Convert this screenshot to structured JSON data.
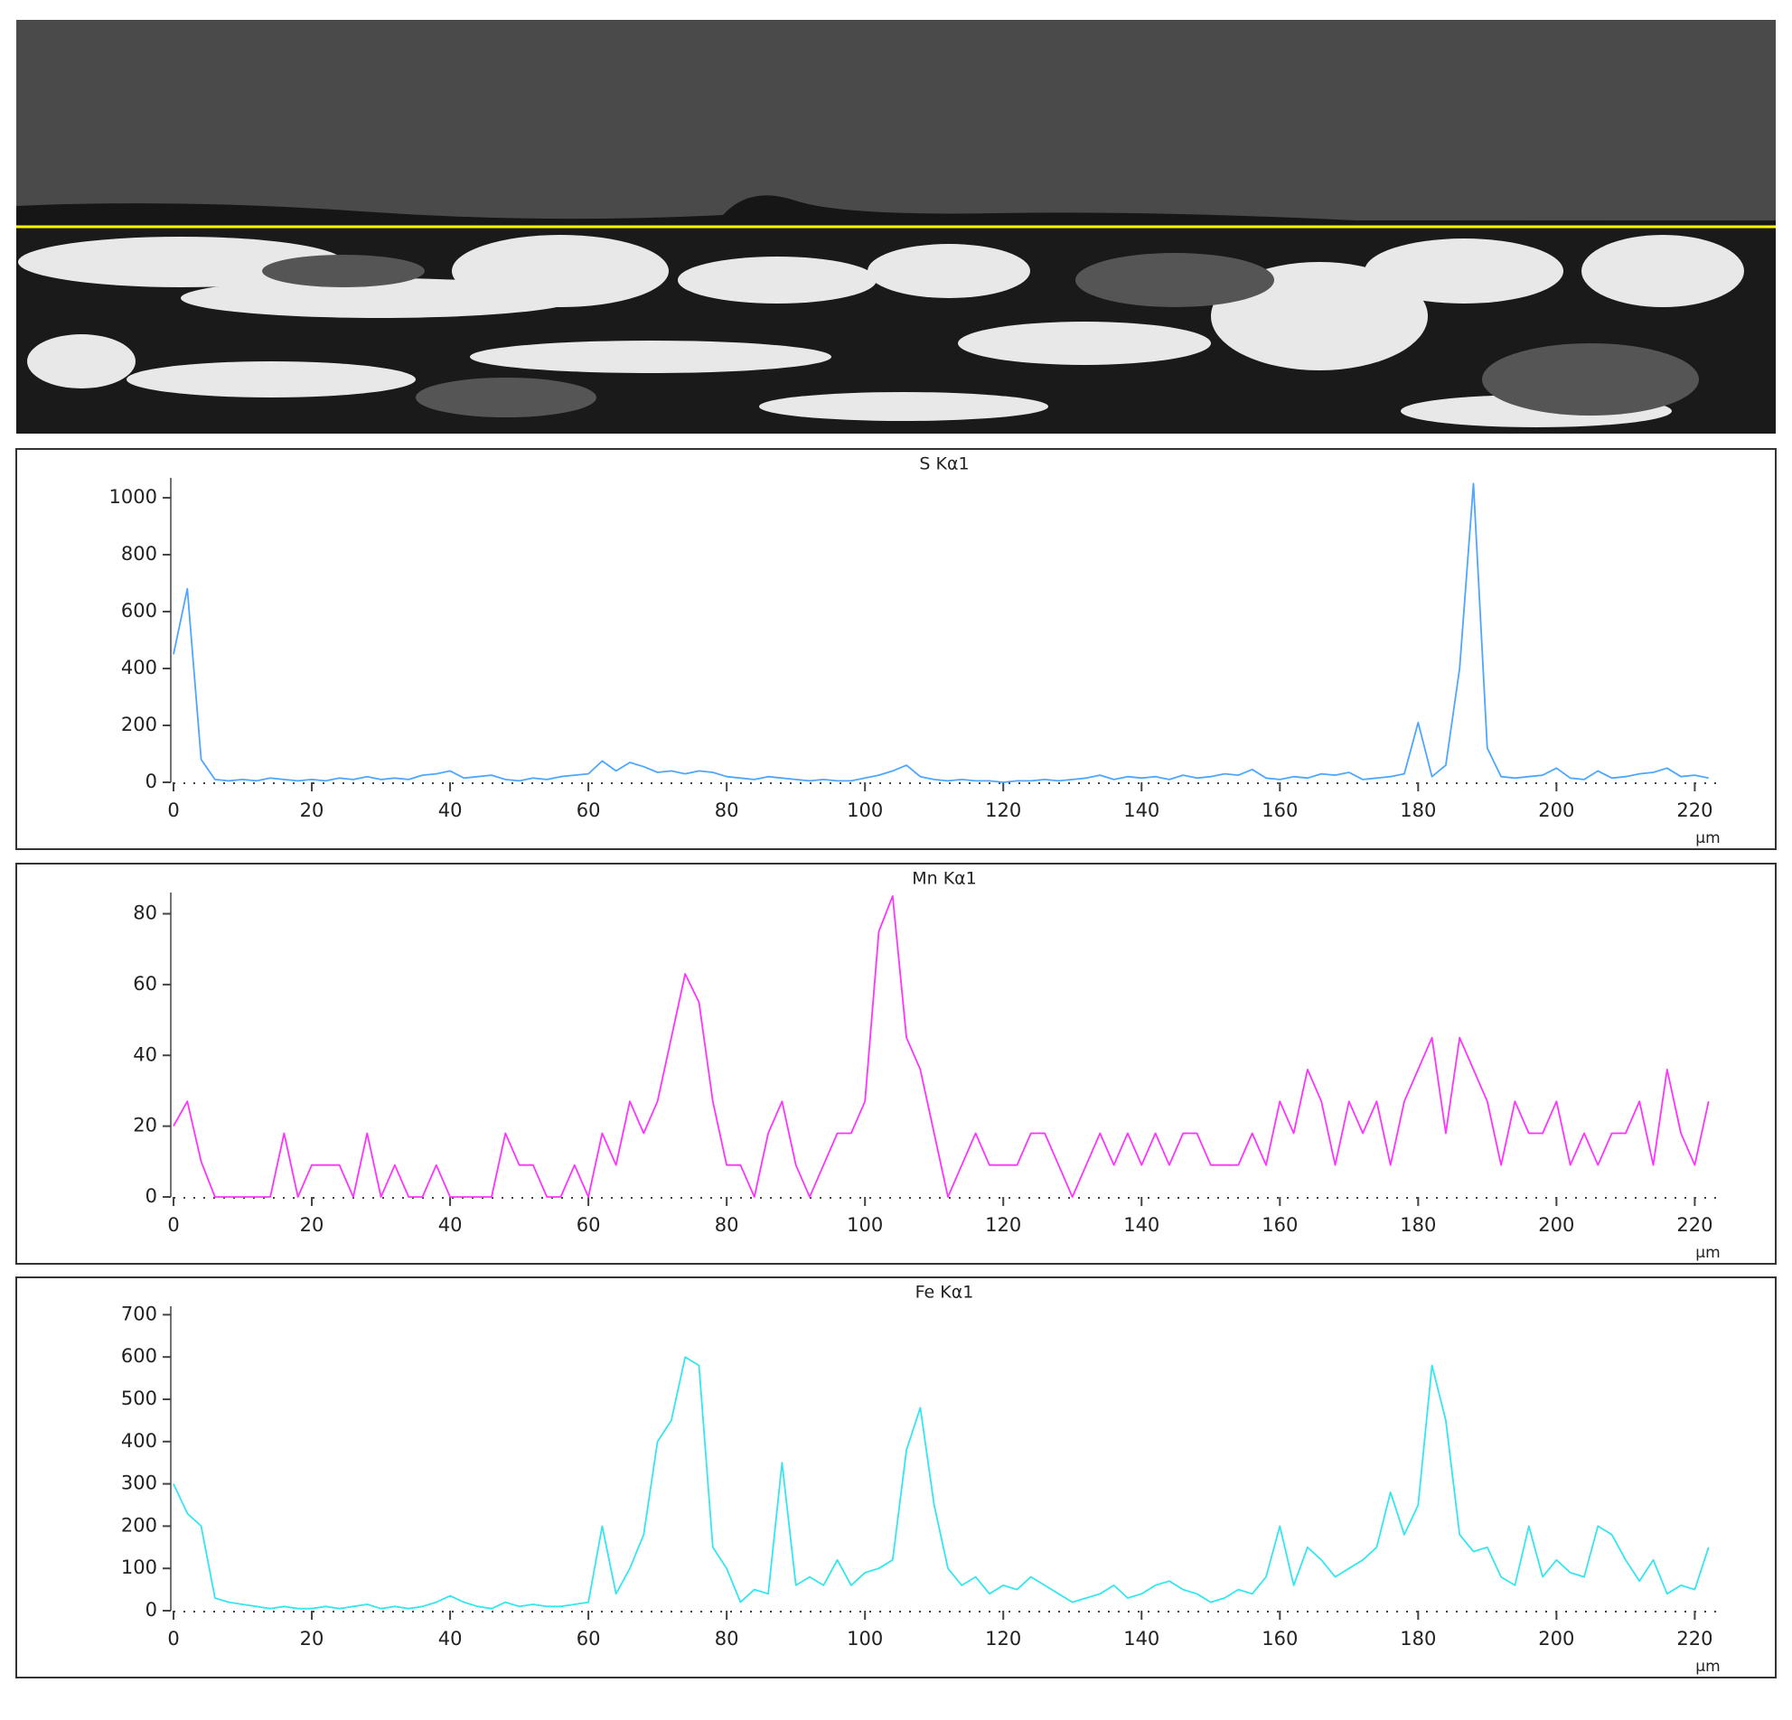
{
  "chart_data": [
    {
      "type": "line",
      "title": "S Kα1",
      "x_label": "μm",
      "color": "#4da6ff",
      "x": [
        0,
        2,
        4,
        6,
        8,
        10,
        12,
        14,
        16,
        18,
        20,
        22,
        24,
        26,
        28,
        30,
        32,
        34,
        36,
        38,
        40,
        42,
        44,
        46,
        48,
        50,
        52,
        54,
        56,
        58,
        60,
        62,
        64,
        66,
        68,
        70,
        72,
        74,
        76,
        78,
        80,
        82,
        84,
        86,
        88,
        90,
        92,
        94,
        96,
        98,
        100,
        102,
        104,
        106,
        108,
        110,
        112,
        114,
        116,
        118,
        120,
        122,
        124,
        126,
        128,
        130,
        132,
        134,
        136,
        138,
        140,
        142,
        144,
        146,
        148,
        150,
        152,
        154,
        156,
        158,
        160,
        162,
        164,
        166,
        168,
        170,
        172,
        174,
        176,
        178,
        180,
        182,
        184,
        186,
        188,
        190,
        192,
        194,
        196,
        198,
        200,
        202,
        204,
        206,
        208,
        210,
        212,
        214,
        216,
        218,
        220,
        222
      ],
      "values": [
        450,
        680,
        80,
        10,
        5,
        10,
        5,
        15,
        10,
        5,
        10,
        5,
        15,
        10,
        20,
        10,
        15,
        10,
        25,
        30,
        40,
        15,
        20,
        25,
        10,
        5,
        15,
        10,
        20,
        25,
        30,
        75,
        40,
        70,
        55,
        35,
        40,
        30,
        40,
        35,
        20,
        15,
        10,
        20,
        15,
        10,
        5,
        10,
        5,
        5,
        15,
        25,
        40,
        60,
        20,
        10,
        5,
        10,
        5,
        5,
        0,
        5,
        5,
        10,
        5,
        10,
        15,
        25,
        10,
        20,
        15,
        20,
        10,
        25,
        15,
        20,
        30,
        25,
        45,
        15,
        10,
        20,
        15,
        30,
        25,
        35,
        10,
        15,
        20,
        30,
        210,
        20,
        60,
        400,
        1050,
        120,
        20,
        15,
        20,
        25,
        50,
        15,
        10,
        40,
        15,
        20,
        30,
        35,
        50,
        20,
        25,
        15
      ],
      "xlim": [
        0,
        224
      ],
      "xticks": [
        0,
        20,
        40,
        60,
        80,
        100,
        120,
        140,
        160,
        180,
        200,
        220
      ],
      "ylim": [
        0,
        1070
      ],
      "yticks": [
        0,
        200,
        400,
        600,
        800,
        1000
      ]
    },
    {
      "type": "line",
      "title": "Mn Kα1",
      "x_label": "μm",
      "color": "#ff33ff",
      "x": [
        0,
        2,
        4,
        6,
        8,
        10,
        12,
        14,
        16,
        18,
        20,
        22,
        24,
        26,
        28,
        30,
        32,
        34,
        36,
        38,
        40,
        42,
        44,
        46,
        48,
        50,
        52,
        54,
        56,
        58,
        60,
        62,
        64,
        66,
        68,
        70,
        72,
        74,
        76,
        78,
        80,
        82,
        84,
        86,
        88,
        90,
        92,
        94,
        96,
        98,
        100,
        102,
        104,
        106,
        108,
        110,
        112,
        114,
        116,
        118,
        120,
        122,
        124,
        126,
        128,
        130,
        132,
        134,
        136,
        138,
        140,
        142,
        144,
        146,
        148,
        150,
        152,
        154,
        156,
        158,
        160,
        162,
        164,
        166,
        168,
        170,
        172,
        174,
        176,
        178,
        180,
        182,
        184,
        186,
        188,
        190,
        192,
        194,
        196,
        198,
        200,
        202,
        204,
        206,
        208,
        210,
        212,
        214,
        216,
        218,
        220,
        222
      ],
      "values": [
        20,
        27,
        10,
        0,
        0,
        0,
        0,
        0,
        18,
        0,
        9,
        9,
        9,
        0,
        18,
        0,
        9,
        0,
        0,
        9,
        0,
        0,
        0,
        0,
        18,
        9,
        9,
        0,
        0,
        9,
        0,
        18,
        9,
        27,
        18,
        27,
        45,
        63,
        55,
        27,
        9,
        9,
        0,
        18,
        27,
        9,
        0,
        9,
        18,
        18,
        27,
        75,
        85,
        45,
        36,
        18,
        0,
        9,
        18,
        9,
        9,
        9,
        18,
        18,
        9,
        0,
        9,
        18,
        9,
        18,
        9,
        18,
        9,
        18,
        18,
        9,
        9,
        9,
        18,
        9,
        27,
        18,
        36,
        27,
        9,
        27,
        18,
        27,
        9,
        27,
        36,
        45,
        18,
        45,
        36,
        27,
        9,
        27,
        18,
        18,
        27,
        9,
        18,
        9,
        18,
        18,
        27,
        9,
        36,
        18,
        9,
        27
      ],
      "xlim": [
        0,
        224
      ],
      "xticks": [
        0,
        20,
        40,
        60,
        80,
        100,
        120,
        140,
        160,
        180,
        200,
        220
      ],
      "ylim": [
        0,
        86
      ],
      "yticks": [
        0,
        20,
        40,
        60,
        80
      ]
    },
    {
      "type": "line",
      "title": "Fe Kα1",
      "x_label": "μm",
      "color": "#33e6f0",
      "x": [
        0,
        2,
        4,
        6,
        8,
        10,
        12,
        14,
        16,
        18,
        20,
        22,
        24,
        26,
        28,
        30,
        32,
        34,
        36,
        38,
        40,
        42,
        44,
        46,
        48,
        50,
        52,
        54,
        56,
        58,
        60,
        62,
        64,
        66,
        68,
        70,
        72,
        74,
        76,
        78,
        80,
        82,
        84,
        86,
        88,
        90,
        92,
        94,
        96,
        98,
        100,
        102,
        104,
        106,
        108,
        110,
        112,
        114,
        116,
        118,
        120,
        122,
        124,
        126,
        128,
        130,
        132,
        134,
        136,
        138,
        140,
        142,
        144,
        146,
        148,
        150,
        152,
        154,
        156,
        158,
        160,
        162,
        164,
        166,
        168,
        170,
        172,
        174,
        176,
        178,
        180,
        182,
        184,
        186,
        188,
        190,
        192,
        194,
        196,
        198,
        200,
        202,
        204,
        206,
        208,
        210,
        212,
        214,
        216,
        218,
        220,
        222
      ],
      "values": [
        300,
        230,
        200,
        30,
        20,
        15,
        10,
        5,
        10,
        5,
        5,
        10,
        5,
        10,
        15,
        5,
        10,
        5,
        10,
        20,
        35,
        20,
        10,
        5,
        20,
        10,
        15,
        10,
        10,
        15,
        20,
        200,
        40,
        100,
        180,
        400,
        450,
        600,
        580,
        150,
        100,
        20,
        50,
        40,
        350,
        60,
        80,
        60,
        120,
        60,
        90,
        100,
        120,
        380,
        480,
        250,
        100,
        60,
        80,
        40,
        60,
        50,
        80,
        60,
        40,
        20,
        30,
        40,
        60,
        30,
        40,
        60,
        70,
        50,
        40,
        20,
        30,
        50,
        40,
        80,
        200,
        60,
        150,
        120,
        80,
        100,
        120,
        150,
        280,
        180,
        250,
        580,
        450,
        180,
        140,
        150,
        80,
        60,
        200,
        80,
        120,
        90,
        80,
        200,
        180,
        120,
        70,
        120,
        40,
        60,
        50,
        150
      ],
      "xlim": [
        0,
        224
      ],
      "xticks": [
        0,
        20,
        40,
        60,
        80,
        100,
        120,
        140,
        160,
        180,
        200,
        220
      ],
      "ylim": [
        0,
        720
      ],
      "yticks": [
        0,
        100,
        200,
        300,
        400,
        500,
        600,
        700
      ]
    }
  ]
}
